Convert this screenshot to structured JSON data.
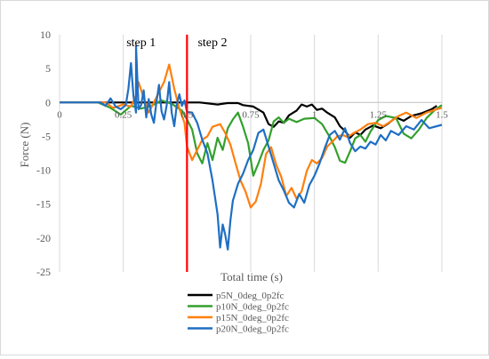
{
  "chart_data": {
    "type": "line",
    "xlabel": "Total time (s)",
    "ylabel": "Force (N)",
    "xlim": [
      0,
      1.5
    ],
    "ylim": [
      -25,
      10
    ],
    "x_ticks": [
      {
        "value": 0,
        "label": "0"
      },
      {
        "value": 0.25,
        "label": "0.25"
      },
      {
        "value": 0.5,
        "label": "0.5"
      },
      {
        "value": 0.75,
        "label": "0.75"
      },
      {
        "value": 1.0,
        "label": "1"
      },
      {
        "value": 1.25,
        "label": "1.25"
      },
      {
        "value": 1.5,
        "label": "1.5"
      }
    ],
    "y_ticks": [
      10,
      5,
      0,
      -5,
      -10,
      -15,
      -20,
      -25
    ],
    "grid": "vertical-major",
    "legend_position": "bottom-right",
    "annotations": [
      {
        "text": "step 1",
        "x": 0.32,
        "y": 8.3
      },
      {
        "text": "step 2",
        "x": 0.6,
        "y": 8.3
      }
    ],
    "divider": {
      "x": 0.5,
      "color": "#ff0000"
    },
    "series": [
      {
        "name": "p5N_0deg_0p2fc",
        "color": "#000000",
        "points": [
          [
            0,
            0
          ],
          [
            0.5,
            0
          ],
          [
            0.55,
            0
          ],
          [
            0.62,
            -0.3
          ],
          [
            0.66,
            -0.1
          ],
          [
            0.7,
            -0.1
          ],
          [
            0.72,
            -0.4
          ],
          [
            0.76,
            -0.6
          ],
          [
            0.8,
            -1.5
          ],
          [
            0.82,
            -3.2
          ],
          [
            0.84,
            -3.6
          ],
          [
            0.86,
            -2.8
          ],
          [
            0.88,
            -3.0
          ],
          [
            0.9,
            -1.9
          ],
          [
            0.93,
            -1.2
          ],
          [
            0.95,
            -0.3
          ],
          [
            0.97,
            -0.6
          ],
          [
            0.99,
            -0.3
          ],
          [
            1.01,
            -1.1
          ],
          [
            1.03,
            -0.9
          ],
          [
            1.05,
            -1.5
          ],
          [
            1.08,
            -2.2
          ],
          [
            1.1,
            -3.5
          ],
          [
            1.12,
            -4.2
          ],
          [
            1.14,
            -5.2
          ],
          [
            1.16,
            -4.4
          ],
          [
            1.18,
            -4.8
          ],
          [
            1.2,
            -4.0
          ],
          [
            1.23,
            -3.4
          ],
          [
            1.26,
            -3.8
          ],
          [
            1.29,
            -3.1
          ],
          [
            1.32,
            -2.2
          ],
          [
            1.35,
            -2.7
          ],
          [
            1.38,
            -2.0
          ],
          [
            1.42,
            -1.6
          ],
          [
            1.46,
            -1.0
          ],
          [
            1.48,
            -0.5
          ]
        ]
      },
      {
        "name": "p10N_0deg_0p2fc",
        "color": "#33a02c",
        "points": [
          [
            0,
            0
          ],
          [
            0.15,
            0
          ],
          [
            0.2,
            -0.8
          ],
          [
            0.24,
            -1.8
          ],
          [
            0.28,
            -0.5
          ],
          [
            0.32,
            -0.9
          ],
          [
            0.36,
            -0.5
          ],
          [
            0.4,
            0.3
          ],
          [
            0.44,
            -0.2
          ],
          [
            0.48,
            -1.2
          ],
          [
            0.5,
            -2.5
          ],
          [
            0.52,
            -4.0
          ],
          [
            0.54,
            -7.5
          ],
          [
            0.56,
            -9.0
          ],
          [
            0.58,
            -6.0
          ],
          [
            0.6,
            -8.5
          ],
          [
            0.62,
            -5.2
          ],
          [
            0.64,
            -7.0
          ],
          [
            0.66,
            -3.8
          ],
          [
            0.68,
            -2.5
          ],
          [
            0.7,
            -1.5
          ],
          [
            0.72,
            -3.6
          ],
          [
            0.74,
            -6.0
          ],
          [
            0.76,
            -10.8
          ],
          [
            0.78,
            -9.0
          ],
          [
            0.8,
            -7.0
          ],
          [
            0.82,
            -5.6
          ],
          [
            0.84,
            -2.8
          ],
          [
            0.86,
            -2.2
          ],
          [
            0.88,
            -3.0
          ],
          [
            0.9,
            -2.4
          ],
          [
            0.93,
            -2.9
          ],
          [
            0.96,
            -2.4
          ],
          [
            1.0,
            -2.3
          ],
          [
            1.03,
            -3.2
          ],
          [
            1.06,
            -5.1
          ],
          [
            1.08,
            -6.6
          ],
          [
            1.1,
            -8.6
          ],
          [
            1.12,
            -8.9
          ],
          [
            1.14,
            -7.2
          ],
          [
            1.16,
            -5.3
          ],
          [
            1.18,
            -4.8
          ],
          [
            1.2,
            -5.8
          ],
          [
            1.22,
            -4.3
          ],
          [
            1.25,
            -2.6
          ],
          [
            1.28,
            -2.0
          ],
          [
            1.32,
            -2.3
          ],
          [
            1.35,
            -4.6
          ],
          [
            1.38,
            -5.3
          ],
          [
            1.41,
            -4.0
          ],
          [
            1.44,
            -2.3
          ],
          [
            1.47,
            -1.2
          ],
          [
            1.5,
            -0.4
          ]
        ]
      },
      {
        "name": "p15N_0deg_0p2fc",
        "color": "#ff7f0e",
        "points": [
          [
            0,
            0
          ],
          [
            0.18,
            0
          ],
          [
            0.21,
            -0.8
          ],
          [
            0.25,
            -0.3
          ],
          [
            0.28,
            -0.6
          ],
          [
            0.3,
            1.0
          ],
          [
            0.31,
            3.0
          ],
          [
            0.33,
            0.6
          ],
          [
            0.35,
            -1.5
          ],
          [
            0.37,
            0.0
          ],
          [
            0.39,
            1.5
          ],
          [
            0.41,
            3.0
          ],
          [
            0.43,
            5.6
          ],
          [
            0.45,
            2.0
          ],
          [
            0.47,
            -0.9
          ],
          [
            0.49,
            -3.0
          ],
          [
            0.5,
            -6.5
          ],
          [
            0.52,
            -8.5
          ],
          [
            0.54,
            -7.0
          ],
          [
            0.56,
            -5.5
          ],
          [
            0.58,
            -5.0
          ],
          [
            0.6,
            -3.6
          ],
          [
            0.63,
            -3.2
          ],
          [
            0.65,
            -4.5
          ],
          [
            0.67,
            -6.2
          ],
          [
            0.69,
            -8.9
          ],
          [
            0.71,
            -11.5
          ],
          [
            0.73,
            -13.2
          ],
          [
            0.75,
            -15.5
          ],
          [
            0.77,
            -14.6
          ],
          [
            0.79,
            -12.0
          ],
          [
            0.81,
            -7.6
          ],
          [
            0.83,
            -6.6
          ],
          [
            0.85,
            -9.2
          ],
          [
            0.87,
            -11.0
          ],
          [
            0.89,
            -13.8
          ],
          [
            0.91,
            -12.6
          ],
          [
            0.93,
            -14.2
          ],
          [
            0.95,
            -13.1
          ],
          [
            0.97,
            -10.1
          ],
          [
            0.99,
            -8.5
          ],
          [
            1.01,
            -9.0
          ],
          [
            1.03,
            -8.2
          ],
          [
            1.05,
            -6.5
          ],
          [
            1.07,
            -5.8
          ],
          [
            1.09,
            -5.0
          ],
          [
            1.11,
            -4.8
          ],
          [
            1.13,
            -5.1
          ],
          [
            1.15,
            -4.6
          ],
          [
            1.18,
            -4.0
          ],
          [
            1.21,
            -3.2
          ],
          [
            1.24,
            -3.0
          ],
          [
            1.27,
            -3.5
          ],
          [
            1.3,
            -2.8
          ],
          [
            1.33,
            -2.0
          ],
          [
            1.36,
            -1.5
          ],
          [
            1.4,
            -2.3
          ],
          [
            1.44,
            -1.5
          ],
          [
            1.48,
            -1.0
          ],
          [
            1.5,
            -0.8
          ]
        ]
      },
      {
        "name": "p20N_0deg_0p2fc",
        "color": "#1f6fc4",
        "points": [
          [
            0,
            0
          ],
          [
            0.16,
            0
          ],
          [
            0.18,
            -0.5
          ],
          [
            0.2,
            0.6
          ],
          [
            0.22,
            -0.6
          ],
          [
            0.24,
            -1.0
          ],
          [
            0.26,
            -0.4
          ],
          [
            0.27,
            2.0
          ],
          [
            0.28,
            5.8
          ],
          [
            0.29,
            1.0
          ],
          [
            0.3,
            -1.5
          ],
          [
            0.3,
            8.3
          ],
          [
            0.31,
            -1.0
          ],
          [
            0.32,
            -0.4
          ],
          [
            0.33,
            1.8
          ],
          [
            0.34,
            -2.2
          ],
          [
            0.35,
            0.5
          ],
          [
            0.36,
            -1.8
          ],
          [
            0.37,
            -3.0
          ],
          [
            0.38,
            0.0
          ],
          [
            0.39,
            2.6
          ],
          [
            0.4,
            -1.3
          ],
          [
            0.41,
            -2.5
          ],
          [
            0.42,
            -0.5
          ],
          [
            0.43,
            3.0
          ],
          [
            0.44,
            -1.5
          ],
          [
            0.45,
            -3.5
          ],
          [
            0.46,
            -0.3
          ],
          [
            0.47,
            1.2
          ],
          [
            0.48,
            -0.5
          ],
          [
            0.49,
            0.3
          ],
          [
            0.5,
            -1.4
          ],
          [
            0.52,
            -1.5
          ],
          [
            0.54,
            -3.0
          ],
          [
            0.56,
            -5.5
          ],
          [
            0.58,
            -7.5
          ],
          [
            0.6,
            -11.5
          ],
          [
            0.62,
            -16.5
          ],
          [
            0.63,
            -21.4
          ],
          [
            0.64,
            -18.0
          ],
          [
            0.65,
            -19.5
          ],
          [
            0.66,
            -21.7
          ],
          [
            0.67,
            -17.5
          ],
          [
            0.68,
            -14.5
          ],
          [
            0.7,
            -12.0
          ],
          [
            0.72,
            -10.5
          ],
          [
            0.74,
            -8.5
          ],
          [
            0.76,
            -7.0
          ],
          [
            0.78,
            -4.5
          ],
          [
            0.8,
            -4.0
          ],
          [
            0.82,
            -6.5
          ],
          [
            0.84,
            -9.0
          ],
          [
            0.86,
            -11.5
          ],
          [
            0.88,
            -13.0
          ],
          [
            0.9,
            -14.8
          ],
          [
            0.92,
            -15.5
          ],
          [
            0.94,
            -13.5
          ],
          [
            0.96,
            -14.8
          ],
          [
            0.98,
            -12.2
          ],
          [
            1.0,
            -10.8
          ],
          [
            1.02,
            -9.0
          ],
          [
            1.04,
            -6.8
          ],
          [
            1.06,
            -4.8
          ],
          [
            1.08,
            -4.2
          ],
          [
            1.1,
            -5.5
          ],
          [
            1.12,
            -3.8
          ],
          [
            1.14,
            -6.0
          ],
          [
            1.16,
            -7.2
          ],
          [
            1.18,
            -6.5
          ],
          [
            1.2,
            -6.8
          ],
          [
            1.22,
            -5.8
          ],
          [
            1.24,
            -6.2
          ],
          [
            1.26,
            -4.8
          ],
          [
            1.28,
            -5.6
          ],
          [
            1.3,
            -4.2
          ],
          [
            1.33,
            -4.8
          ],
          [
            1.36,
            -3.5
          ],
          [
            1.39,
            -4.0
          ],
          [
            1.42,
            -2.6
          ],
          [
            1.45,
            -3.8
          ],
          [
            1.48,
            -3.5
          ],
          [
            1.5,
            -3.3
          ]
        ]
      }
    ]
  }
}
